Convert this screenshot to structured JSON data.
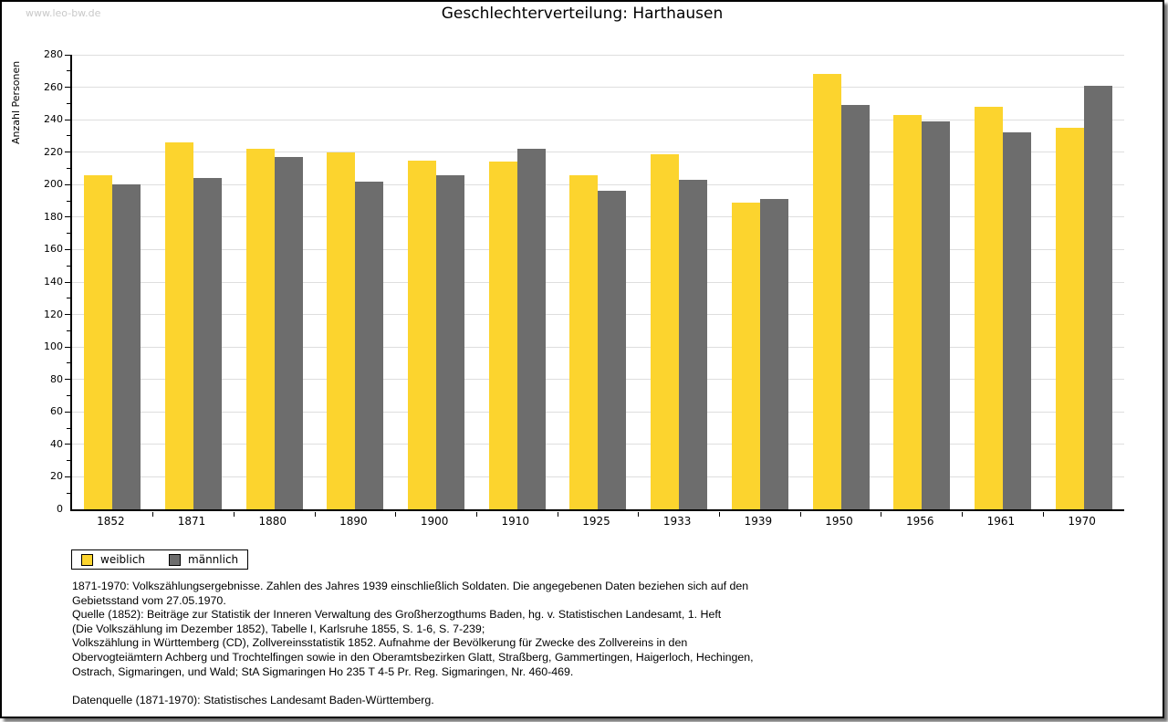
{
  "watermark": "www.leo-bw.de",
  "chart_data": {
    "type": "bar",
    "title": "Geschlechterverteilung: Harthausen",
    "ylabel": "Anzahl Personen",
    "xlabel": "",
    "ylim": [
      0,
      280
    ],
    "ytick_step": 20,
    "ytick_minor_step": 10,
    "grid": "horizontal",
    "legend_position": "bottom-left",
    "categories": [
      "1852",
      "1871",
      "1880",
      "1890",
      "1900",
      "1910",
      "1925",
      "1933",
      "1939",
      "1950",
      "1956",
      "1961",
      "1970"
    ],
    "series": [
      {
        "name": "weiblich",
        "color": "#fcd42e",
        "values": [
          206,
          226,
          222,
          220,
          215,
          214,
          206,
          219,
          189,
          268,
          243,
          248,
          235
        ]
      },
      {
        "name": "männlich",
        "color": "#6d6d6d",
        "values": [
          200,
          204,
          217,
          202,
          206,
          222,
          196,
          203,
          191,
          249,
          239,
          232,
          261
        ]
      }
    ]
  },
  "legend": {
    "items": [
      {
        "label": "weiblich",
        "color": "#fcd42e"
      },
      {
        "label": "männlich",
        "color": "#6d6d6d"
      }
    ]
  },
  "footer": {
    "lines": [
      "1871-1970: Volkszählungsergebnisse. Zahlen des Jahres 1939 einschließlich Soldaten. Die angegebenen Daten beziehen sich auf den",
      "Gebietsstand vom 27.05.1970.",
      "Quelle (1852): Beiträge zur Statistik der Inneren Verwaltung des Großherzogthums Baden, hg. v. Statistischen Landesamt, 1. Heft",
      "(Die Volkszählung im Dezember 1852), Tabelle I, Karlsruhe 1855, S. 1-6, S. 7-239;",
      "Volkszählung in Württemberg (CD), Zollvereinsstatistik 1852. Aufnahme der Bevölkerung für Zwecke des Zollvereins in den",
      "Obervogteiämtern Achberg und Trochtelfingen sowie in den Oberamtsbezirken Glatt, Straßberg, Gammertingen, Haigerloch, Hechingen,",
      "Ostrach, Sigmaringen, und Wald; StA Sigmaringen Ho 235 T 4-5 Pr. Reg. Sigmaringen, Nr. 460-469."
    ],
    "datenquelle": "Datenquelle (1871-1970): Statistisches Landesamt Baden-Württemberg."
  },
  "colors": {
    "gridline": "#dedede",
    "axis": "#000000",
    "watermark": "#c9c9c9",
    "background": "#ffffff",
    "border": "#000000"
  }
}
